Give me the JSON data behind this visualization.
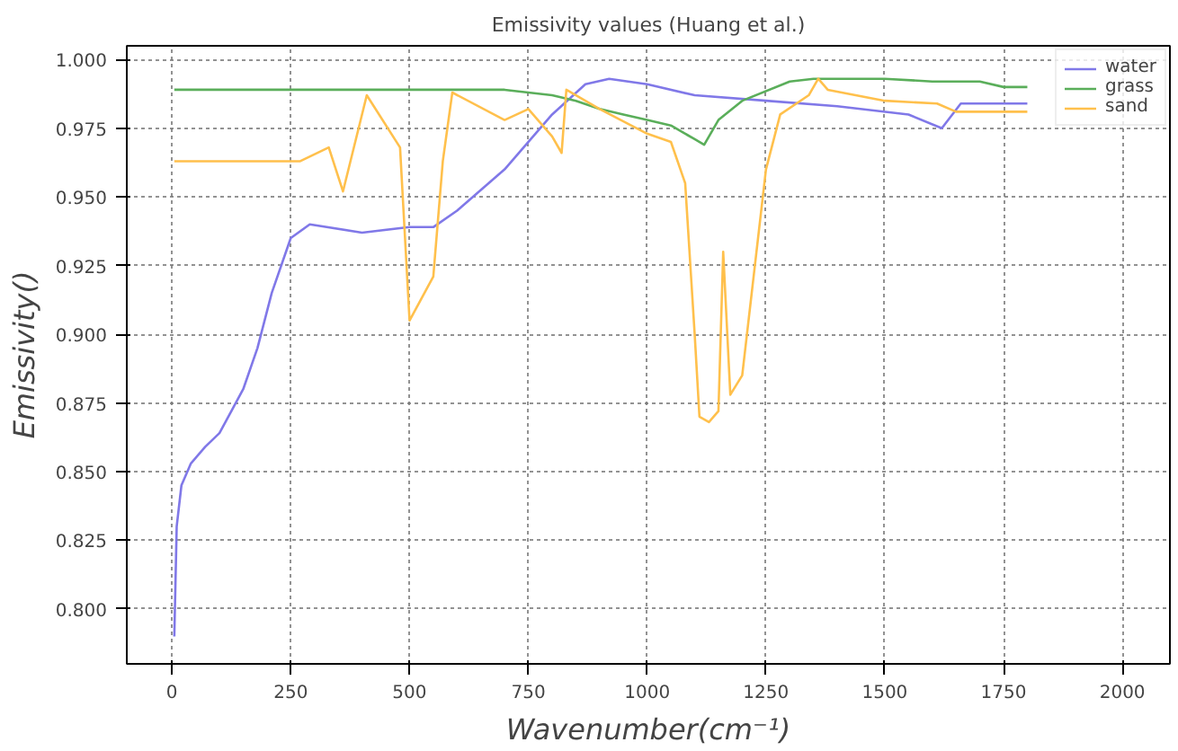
{
  "chart_data": {
    "type": "line",
    "title": "Emissivity values (Huang et al.)",
    "xlabel": "Wavenumber(cm⁻¹)",
    "ylabel": "Emissivity()",
    "xlim": [
      -95,
      2100
    ],
    "ylim": [
      0.78,
      1.005
    ],
    "xticks": [
      0,
      250,
      500,
      750,
      1000,
      1250,
      1500,
      1750,
      2000
    ],
    "yticks": [
      {
        "value": 0.8,
        "label": "0.800"
      },
      {
        "value": 0.825,
        "label": "0.825"
      },
      {
        "value": 0.85,
        "label": "0.850"
      },
      {
        "value": 0.875,
        "label": "0.875"
      },
      {
        "value": 0.9,
        "label": "0.900"
      },
      {
        "value": 0.925,
        "label": "0.925"
      },
      {
        "value": 0.95,
        "label": "0.950"
      },
      {
        "value": 0.975,
        "label": "0.975"
      },
      {
        "value": 1.0,
        "label": "1.000"
      }
    ],
    "grid": true,
    "legend": "top right",
    "line_style": "solid",
    "series": [
      {
        "name": "water",
        "color": "#8078e8",
        "x": [
          5,
          10,
          20,
          40,
          70,
          100,
          150,
          180,
          210,
          250,
          290,
          400,
          500,
          550,
          600,
          700,
          800,
          870,
          920,
          1000,
          1100,
          1250,
          1400,
          1550,
          1620,
          1660,
          1800
        ],
        "values": [
          0.79,
          0.83,
          0.845,
          0.853,
          0.859,
          0.864,
          0.88,
          0.895,
          0.915,
          0.935,
          0.94,
          0.937,
          0.939,
          0.939,
          0.945,
          0.96,
          0.98,
          0.991,
          0.993,
          0.991,
          0.987,
          0.985,
          0.983,
          0.98,
          0.975,
          0.984,
          0.984
        ]
      },
      {
        "name": "grass",
        "color": "#5aae5a",
        "x": [
          5,
          700,
          750,
          800,
          850,
          900,
          950,
          1000,
          1050,
          1100,
          1120,
          1150,
          1200,
          1300,
          1350,
          1500,
          1600,
          1700,
          1750,
          1800
        ],
        "values": [
          0.989,
          0.989,
          0.988,
          0.987,
          0.985,
          0.982,
          0.98,
          0.978,
          0.976,
          0.971,
          0.969,
          0.978,
          0.985,
          0.992,
          0.993,
          0.993,
          0.992,
          0.992,
          0.99,
          0.99
        ]
      },
      {
        "name": "sand",
        "color": "#ffc04c",
        "x": [
          5,
          270,
          330,
          360,
          410,
          480,
          500,
          550,
          570,
          590,
          700,
          750,
          800,
          820,
          830,
          900,
          1000,
          1050,
          1080,
          1100,
          1110,
          1130,
          1150,
          1160,
          1175,
          1200,
          1250,
          1280,
          1340,
          1360,
          1380,
          1500,
          1610,
          1650,
          1800
        ],
        "values": [
          0.963,
          0.963,
          0.968,
          0.952,
          0.987,
          0.968,
          0.905,
          0.921,
          0.963,
          0.988,
          0.978,
          0.982,
          0.972,
          0.966,
          0.989,
          0.982,
          0.973,
          0.97,
          0.955,
          0.9,
          0.87,
          0.868,
          0.872,
          0.93,
          0.878,
          0.885,
          0.96,
          0.98,
          0.987,
          0.993,
          0.989,
          0.985,
          0.984,
          0.981,
          0.981
        ]
      }
    ]
  }
}
